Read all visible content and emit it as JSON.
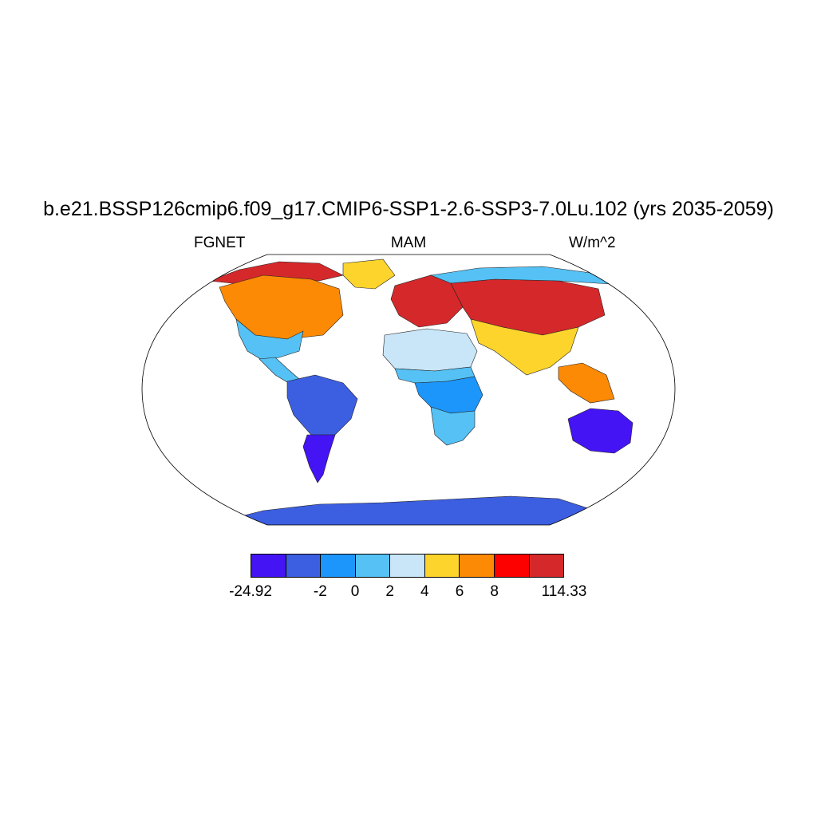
{
  "title": "b.e21.BSSP126cmip6.f09_g17.CMIP6-SSP1-2.6-SSP3-7.0Lu.102 (yrs 2035-2059)",
  "subtitle_left": "FGNET",
  "subtitle_center": "MAM",
  "subtitle_right": "W/m^2",
  "colorbar": {
    "colors": [
      "#4414f5",
      "#3c5ee0",
      "#1c96fa",
      "#55c1f4",
      "#c8e6f8",
      "#fdd42c",
      "#fd8a04",
      "#fd0000",
      "#d5282a"
    ],
    "boundaries": [
      "-24.92",
      "",
      "-2",
      "0",
      "2",
      "4",
      "6",
      "8",
      "",
      "114.33"
    ]
  },
  "map": {
    "projection": "Robinson",
    "ocean_color": "#ffffff",
    "regions": [
      {
        "name": "North America (north-east)",
        "color": "#d5282a"
      },
      {
        "name": "North America (south)",
        "color": "#fd8a04"
      },
      {
        "name": "Canadian Arctic",
        "color": "#55c1f4"
      },
      {
        "name": "Greenland",
        "color": "#55c1f4"
      },
      {
        "name": "Central America",
        "color": "#fdd42c"
      },
      {
        "name": "South America (north)",
        "color": "#3c5ee0"
      },
      {
        "name": "South America (south)",
        "color": "#4414f5"
      },
      {
        "name": "Europe",
        "color": "#d5282a"
      },
      {
        "name": "Siberia",
        "color": "#d5282a"
      },
      {
        "name": "Arctic Russia",
        "color": "#55c1f4"
      },
      {
        "name": "Sahara",
        "color": "#fdd42c"
      },
      {
        "name": "Middle East and South Asia",
        "color": "#fd8a04"
      },
      {
        "name": "Sahel",
        "color": "#c8e6f8"
      },
      {
        "name": "Central Africa",
        "color": "#55c1f4"
      },
      {
        "name": "Southern Africa",
        "color": "#1c96fa"
      },
      {
        "name": "Southeast Asia",
        "color": "#55c1f4"
      },
      {
        "name": "Australia",
        "color": "#4414f5"
      },
      {
        "name": "Antarctica",
        "color": "#3c5ee0"
      }
    ]
  }
}
